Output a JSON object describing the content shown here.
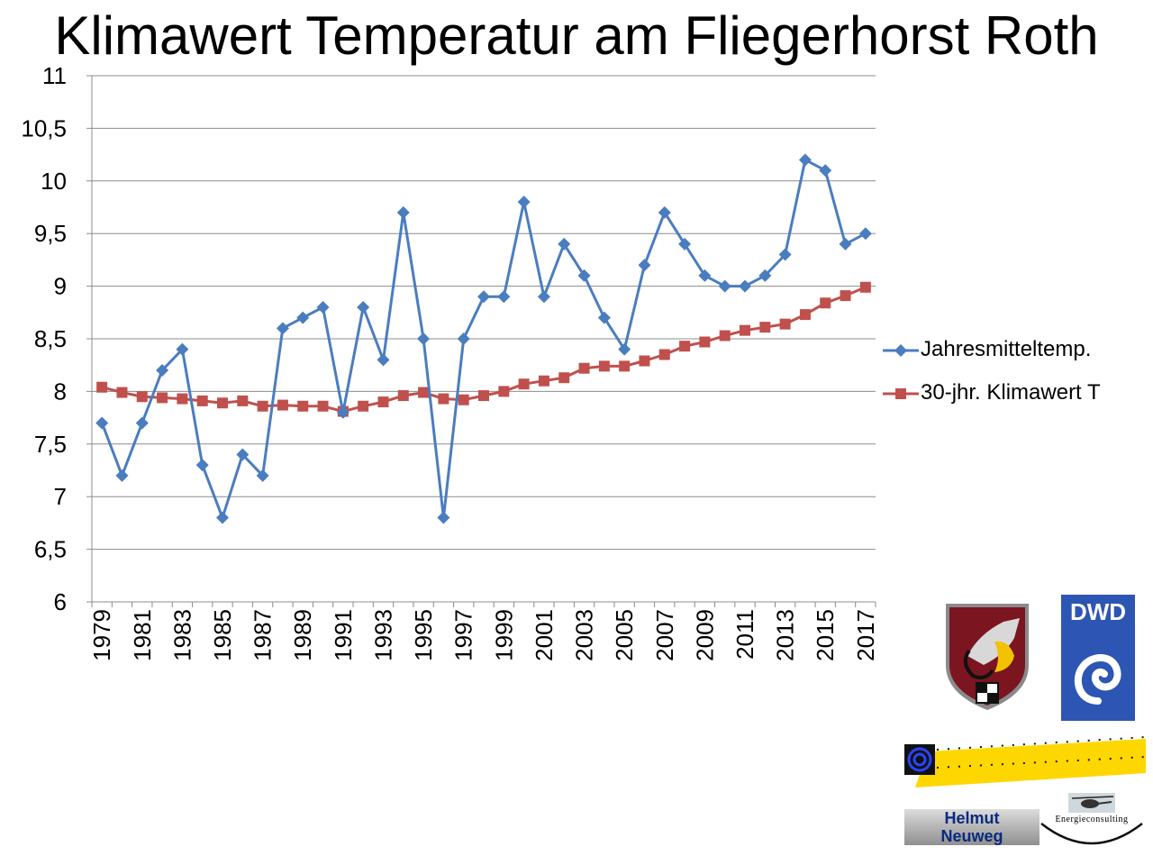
{
  "title": "Klimawert Temperatur am Fliegerhorst Roth",
  "chart_data": {
    "type": "line",
    "title": "Klimawert Temperatur am Fliegerhorst Roth",
    "xlabel": "",
    "ylabel": "",
    "ylim": [
      6,
      11
    ],
    "ytick_step": 0.5,
    "y_tick_labels": [
      "6",
      "6,5",
      "7",
      "7,5",
      "8",
      "8,5",
      "9",
      "9,5",
      "10",
      "10,5",
      "11"
    ],
    "x": [
      1979,
      1980,
      1981,
      1982,
      1983,
      1984,
      1985,
      1986,
      1987,
      1988,
      1989,
      1990,
      1991,
      1992,
      1993,
      1994,
      1995,
      1996,
      1997,
      1998,
      1999,
      2000,
      2001,
      2002,
      2003,
      2004,
      2005,
      2006,
      2007,
      2008,
      2009,
      2010,
      2011,
      2012,
      2013,
      2014,
      2015,
      2016,
      2017
    ],
    "x_tick_labels": [
      "1979",
      "1981",
      "1983",
      "1985",
      "1987",
      "1989",
      "1991",
      "1993",
      "1995",
      "1997",
      "1999",
      "2001",
      "2003",
      "2005",
      "2007",
      "2009",
      "2011",
      "2013",
      "2015",
      "2017"
    ],
    "grid": "horizontal",
    "legend_position": "right",
    "series": [
      {
        "name": "Jahresmitteltemp.",
        "color": "#4a7dbf",
        "marker": "diamond",
        "values": [
          7.7,
          7.2,
          7.7,
          8.2,
          8.4,
          7.3,
          6.8,
          7.4,
          7.2,
          8.6,
          8.7,
          8.8,
          7.8,
          8.8,
          8.3,
          9.7,
          8.5,
          6.8,
          8.5,
          8.9,
          8.9,
          9.8,
          8.9,
          9.4,
          9.1,
          8.7,
          8.4,
          9.2,
          9.7,
          9.4,
          9.1,
          9.0,
          9.0,
          9.1,
          9.3,
          10.2,
          10.1,
          9.4,
          9.5
        ]
      },
      {
        "name": "30-jhr. Klimawert T",
        "color": "#c0504d",
        "marker": "square",
        "values": [
          8.04,
          7.99,
          7.95,
          7.94,
          7.93,
          7.91,
          7.89,
          7.91,
          7.86,
          7.87,
          7.86,
          7.86,
          7.81,
          7.86,
          7.9,
          7.96,
          7.99,
          7.93,
          7.92,
          7.96,
          8.0,
          8.07,
          8.1,
          8.13,
          8.22,
          8.24,
          8.24,
          8.29,
          8.35,
          8.43,
          8.47,
          8.53,
          8.58,
          8.61,
          8.64,
          8.73,
          8.84,
          8.91,
          8.99
        ]
      }
    ]
  },
  "logos": {
    "dwd_text": "DWD",
    "neuweg_line1": "Helmut",
    "neuweg_line2": "Neuweg",
    "energie_text": "Energieconsulting",
    "crest_color": "#7b1520",
    "stripe_color": "#ffd700"
  }
}
